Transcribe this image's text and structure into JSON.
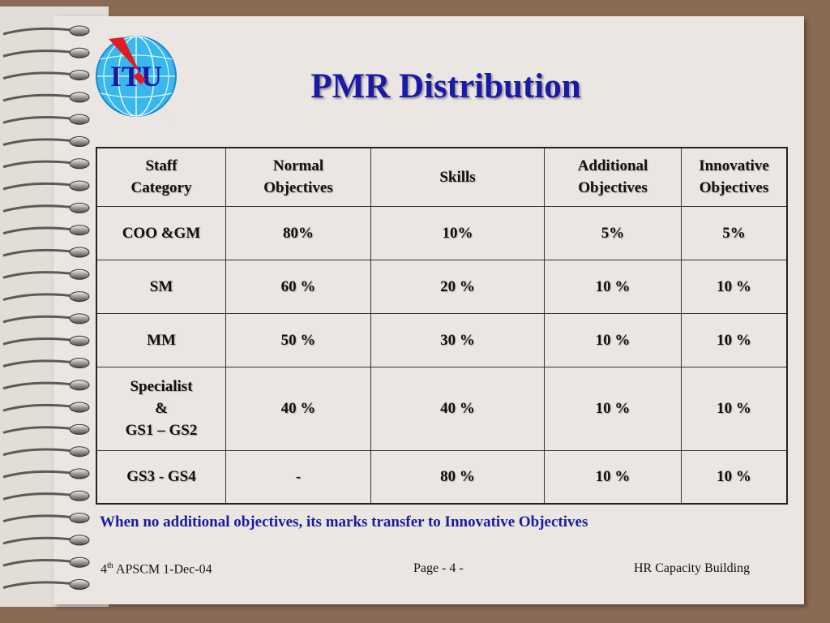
{
  "title": "PMR Distribution",
  "logo_text": "ITU",
  "table": {
    "headers": [
      [
        "Staff",
        "Category"
      ],
      [
        "Normal",
        "Objectives"
      ],
      [
        "Skills"
      ],
      [
        "Additional",
        "Objectives"
      ],
      [
        "Innovative",
        "Objectives"
      ]
    ],
    "rows": [
      {
        "category": [
          "COO &GM"
        ],
        "normal": "80%",
        "skills": "10%",
        "additional": "5%",
        "innovative": "5%"
      },
      {
        "category": [
          "SM"
        ],
        "normal": "60 %",
        "skills": "20 %",
        "additional": "10 %",
        "innovative": "10 %"
      },
      {
        "category": [
          "MM"
        ],
        "normal": "50 %",
        "skills": "30 %",
        "additional": "10 %",
        "innovative": "10 %"
      },
      {
        "category": [
          "Specialist",
          "&",
          "GS1 – GS2"
        ],
        "normal": "40 %",
        "skills": "40 %",
        "additional": "10 %",
        "innovative": "10 %"
      },
      {
        "category": [
          "GS3 - GS4"
        ],
        "normal": "-",
        "skills": "80 %",
        "additional": "10 %",
        "innovative": "10 %"
      }
    ]
  },
  "note": "When no additional objectives, its marks transfer to Innovative Objectives",
  "footer": {
    "left_ordinal": "4",
    "left_sup": "th",
    "left_rest": " APSCM 1-Dec-04",
    "center": "Page - 4 -",
    "right": "HR Capacity Building"
  },
  "colors": {
    "title": "#1a1aa8",
    "note": "#1a1a9e",
    "background": "#8b6a55",
    "page": "#ebe6e2"
  }
}
